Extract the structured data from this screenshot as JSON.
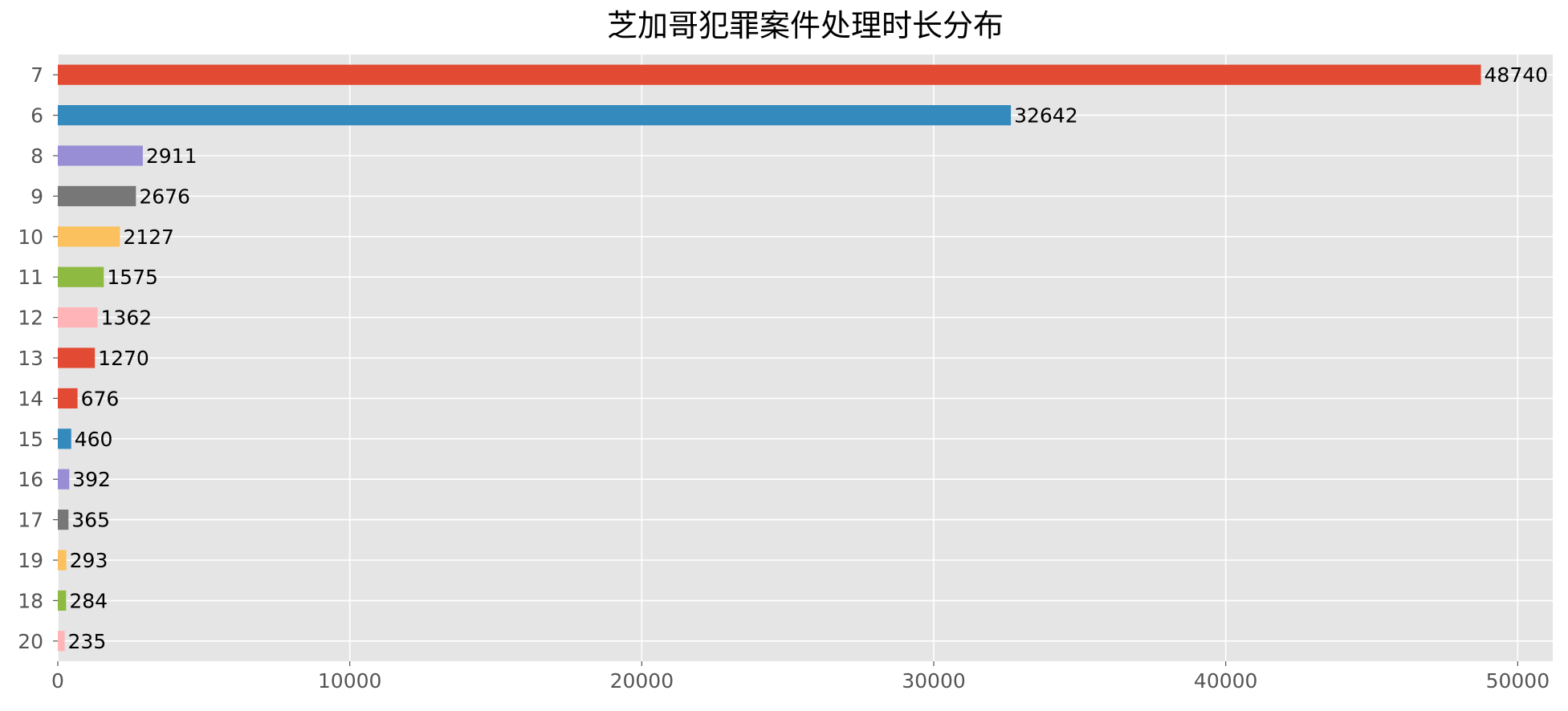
{
  "chart_data": {
    "type": "bar",
    "orientation": "horizontal",
    "title": "芝加哥犯罪案件处理时长分布",
    "xlabel": "",
    "ylabel": "",
    "categories": [
      "7",
      "6",
      "8",
      "9",
      "10",
      "11",
      "12",
      "13",
      "14",
      "15",
      "16",
      "17",
      "19",
      "18",
      "20"
    ],
    "values": [
      48740,
      32642,
      2911,
      2676,
      2127,
      1575,
      1362,
      1270,
      676,
      460,
      392,
      365,
      293,
      284,
      235
    ],
    "bar_colors": [
      "#E24A33",
      "#348ABD",
      "#988ED5",
      "#777777",
      "#FBC15E",
      "#8EBA42",
      "#FFB5B8",
      "#E24A33",
      "#E24A33",
      "#348ABD",
      "#988ED5",
      "#777777",
      "#FBC15E",
      "#8EBA42",
      "#FFB5B8"
    ],
    "xlim": [
      0,
      51200
    ],
    "xticks": [
      0,
      10000,
      20000,
      30000,
      40000,
      50000
    ],
    "grid": true,
    "data_labels": true,
    "style": {
      "plot_background": "#E5E5E5",
      "grid_color": "#FFFFFF",
      "tick_label_color": "#555555"
    }
  }
}
